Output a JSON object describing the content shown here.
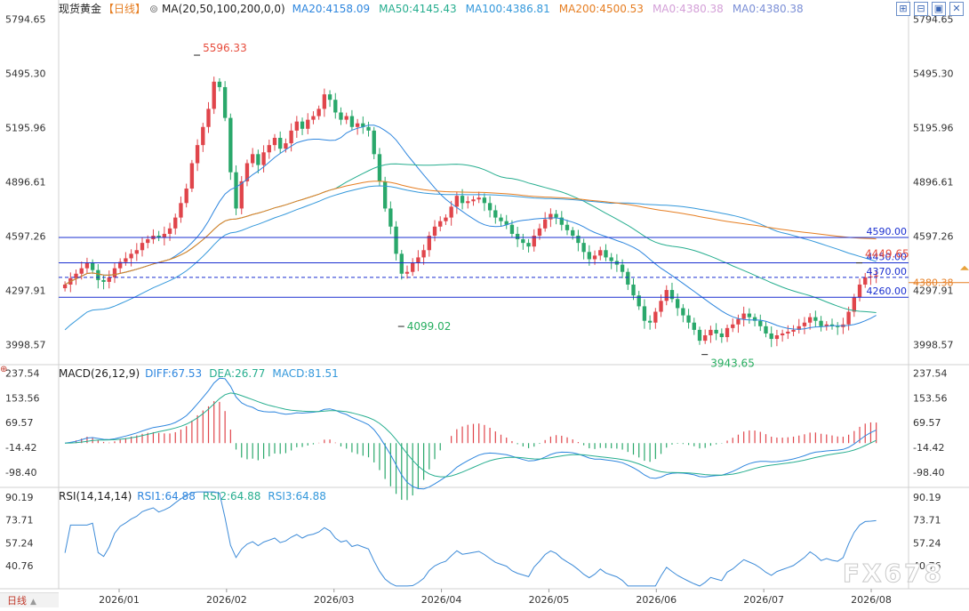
{
  "header": {
    "symbol": "现货黄金",
    "period": "【日线】",
    "ma_label": "MA(20,50,100,200,0,0)",
    "ma_values": [
      {
        "text": "MA20:4158.09",
        "color": "#2e86de"
      },
      {
        "text": "MA50:4145.43",
        "color": "#27ae8f"
      },
      {
        "text": "MA100:4386.81",
        "color": "#3498db"
      },
      {
        "text": "MA200:4500.53",
        "color": "#e67e22"
      },
      {
        "text": "MA0:4380.38",
        "color": "#d4a0d8"
      },
      {
        "text": "MA0:4380.38",
        "color": "#7b8fd6"
      }
    ]
  },
  "toolbar_icons": [
    "grid-plus-icon",
    "grid-minus-icon",
    "layout-icon",
    "close-icon"
  ],
  "price_axis": {
    "ticks": [
      5794.65,
      5495.3,
      5195.96,
      4896.61,
      4597.26,
      4297.91,
      3998.57
    ],
    "tick_labels": [
      "5794.65",
      "5495.30",
      "5195.96",
      "4896.61",
      "4597.26",
      "4297.91",
      "3998.57"
    ],
    "ylim": [
      3888,
      5842
    ]
  },
  "price_levels": [
    {
      "label": "4590.00",
      "value": 4590,
      "color": "#1a2fd0"
    },
    {
      "label": "4450.00",
      "value": 4450,
      "color": "#1a2fd0"
    },
    {
      "label": "4370.00",
      "value": 4370,
      "color": "#1a2fd0",
      "dashed": true
    },
    {
      "label": "4260.00",
      "value": 4260,
      "color": "#1a2fd0"
    }
  ],
  "current_price": {
    "label": "4380.38",
    "value": 4380.38,
    "color": "#e67e22"
  },
  "annotations": [
    {
      "text": "5596.33",
      "value": 5596.33,
      "color": "#e74c3c"
    },
    {
      "text": "4099.02",
      "value": 4099.02,
      "color": "#27ae60"
    },
    {
      "text": "3943.65",
      "value": 3943.65,
      "color": "#27ae60"
    },
    {
      "text": "4449.65",
      "value": 4449.65,
      "color": "#e74c3c"
    }
  ],
  "macd": {
    "label": "MACD(26,12,9)",
    "values": [
      {
        "text": "DIFF:67.53",
        "color": "#2e86de"
      },
      {
        "text": "DEA:26.77",
        "color": "#27ae8f"
      },
      {
        "text": "MACD:81.51",
        "color": "#3498db"
      }
    ],
    "tick_labels": [
      "237.54",
      "153.56",
      "69.57",
      "-14.42",
      "-98.40"
    ],
    "ticks": [
      237.54,
      153.56,
      69.57,
      -14.42,
      -98.4
    ],
    "ylim": [
      -150,
      260
    ]
  },
  "rsi": {
    "label": "RSI(14,14,14)",
    "values": [
      {
        "text": "RSI1:64.88",
        "color": "#2e86de"
      },
      {
        "text": "RSI2:64.88",
        "color": "#27ae8f"
      },
      {
        "text": "RSI3:64.88",
        "color": "#3498db"
      }
    ],
    "tick_labels": [
      "90.19",
      "73.71",
      "57.24",
      "40.76"
    ],
    "ticks": [
      90.19,
      73.71,
      57.24,
      40.76
    ],
    "ylim": [
      24,
      96
    ]
  },
  "time_axis": [
    "2026/01",
    "2026/02",
    "2026/03",
    "2026/04",
    "2026/05",
    "2026/06",
    "2026/07",
    "2026/08"
  ],
  "period_tab": "日线",
  "watermark": "FX678",
  "chart_data": [
    {
      "type": "candlestick",
      "title": "现货黄金",
      "ylim": [
        3888,
        5842
      ],
      "x_months": [
        "2026/01",
        "2026/02",
        "2026/03",
        "2026/04",
        "2026/05",
        "2026/06",
        "2026/07",
        "2026/08"
      ],
      "closes": [
        4330,
        4365,
        4390,
        4420,
        4450,
        4410,
        4355,
        4345,
        4370,
        4420,
        4455,
        4475,
        4500,
        4520,
        4560,
        4580,
        4600,
        4590,
        4610,
        4640,
        4700,
        4780,
        4860,
        5000,
        5100,
        5200,
        5300,
        5450,
        5420,
        5250,
        4950,
        4750,
        4900,
        5000,
        5050,
        4990,
        5060,
        5100,
        5140,
        5080,
        5110,
        5180,
        5230,
        5190,
        5240,
        5260,
        5300,
        5380,
        5350,
        5280,
        5240,
        5260,
        5200,
        5220,
        5200,
        5180,
        5050,
        4900,
        4750,
        4650,
        4500,
        4390,
        4400,
        4450,
        4480,
        4520,
        4600,
        4650,
        4680,
        4700,
        4760,
        4820,
        4780,
        4790,
        4800,
        4810,
        4780,
        4740,
        4700,
        4680,
        4660,
        4610,
        4580,
        4560,
        4540,
        4600,
        4640,
        4690,
        4720,
        4700,
        4660,
        4630,
        4600,
        4560,
        4510,
        4470,
        4490,
        4520,
        4480,
        4460,
        4440,
        4400,
        4330,
        4270,
        4210,
        4130,
        4120,
        4180,
        4240,
        4300,
        4250,
        4200,
        4160,
        4120,
        4080,
        4020,
        4050,
        4080,
        4060,
        4040,
        4090,
        4110,
        4140,
        4170,
        4150,
        4130,
        4100,
        4060,
        4030,
        4050,
        4060,
        4070,
        4080,
        4100,
        4120,
        4150,
        4130,
        4100,
        4110,
        4100,
        4095,
        4110,
        4180,
        4260,
        4330,
        4370,
        4375,
        4380.38
      ],
      "high": 5596.33,
      "low": 3943.65,
      "marked_low": 4099.02,
      "marked_high_recent": 4449.65
    },
    {
      "type": "bar",
      "title": "MACD(26,12,9)",
      "ylim": [
        -150,
        260
      ],
      "diff_last": 67.53,
      "dea_last": 26.77,
      "macd_last": 81.51
    },
    {
      "type": "line",
      "title": "RSI(14,14,14)",
      "ylim": [
        24,
        96
      ],
      "rsi_last": 64.88
    }
  ]
}
